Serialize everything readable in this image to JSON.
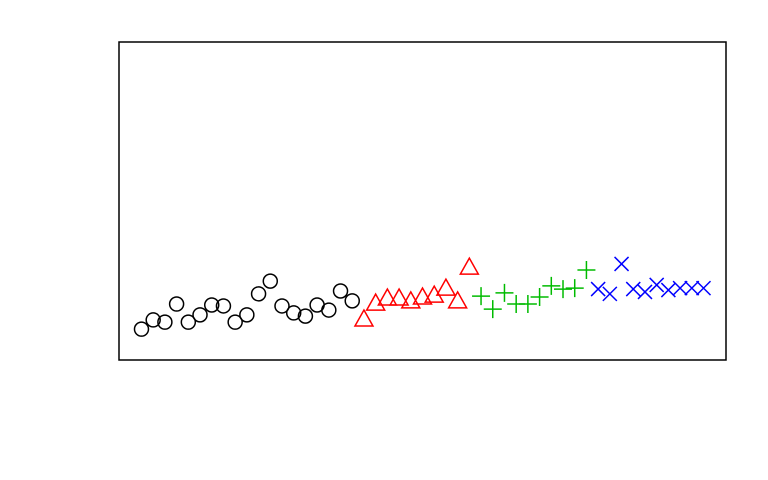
{
  "chart_data": {
    "type": "scatter",
    "xlim": [
      -0.92,
      50.92
    ],
    "ylim": [
      0,
      10
    ],
    "series": [
      {
        "marker": "circle",
        "color": "#000000",
        "x": [
          1,
          2,
          3,
          4,
          5,
          6,
          7,
          8,
          9,
          10,
          11,
          12,
          13,
          14,
          15,
          16,
          17,
          18,
          19
        ],
        "values": [
          0.97,
          1.26,
          1.19,
          1.76,
          1.19,
          1.42,
          1.73,
          1.7,
          1.19,
          1.42,
          2.08,
          2.48,
          1.7,
          1.48,
          1.38,
          1.73,
          1.57,
          2.17,
          1.86
        ]
      },
      {
        "marker": "triangle",
        "color": "#ff0000",
        "x": [
          20,
          21,
          22,
          23,
          24,
          25,
          26,
          27,
          28,
          29
        ],
        "values": [
          1.29,
          1.79,
          1.95,
          1.95,
          1.86,
          1.98,
          2.04,
          2.26,
          1.86,
          2.92
        ]
      },
      {
        "marker": "plus",
        "color": "#00bb00",
        "x": [
          30,
          31,
          32,
          33,
          34,
          35,
          36,
          37,
          38,
          39
        ],
        "values": [
          2.01,
          1.6,
          2.11,
          1.76,
          1.76,
          1.98,
          2.33,
          2.23,
          2.26,
          2.83
        ]
      },
      {
        "marker": "x",
        "color": "#0000ff",
        "x": [
          40,
          41,
          42,
          43,
          44,
          45,
          46,
          47,
          48,
          49
        ],
        "values": [
          2.23,
          2.08,
          3.02,
          2.23,
          2.14,
          2.36,
          2.2,
          2.26,
          2.26,
          2.26
        ]
      }
    ]
  }
}
